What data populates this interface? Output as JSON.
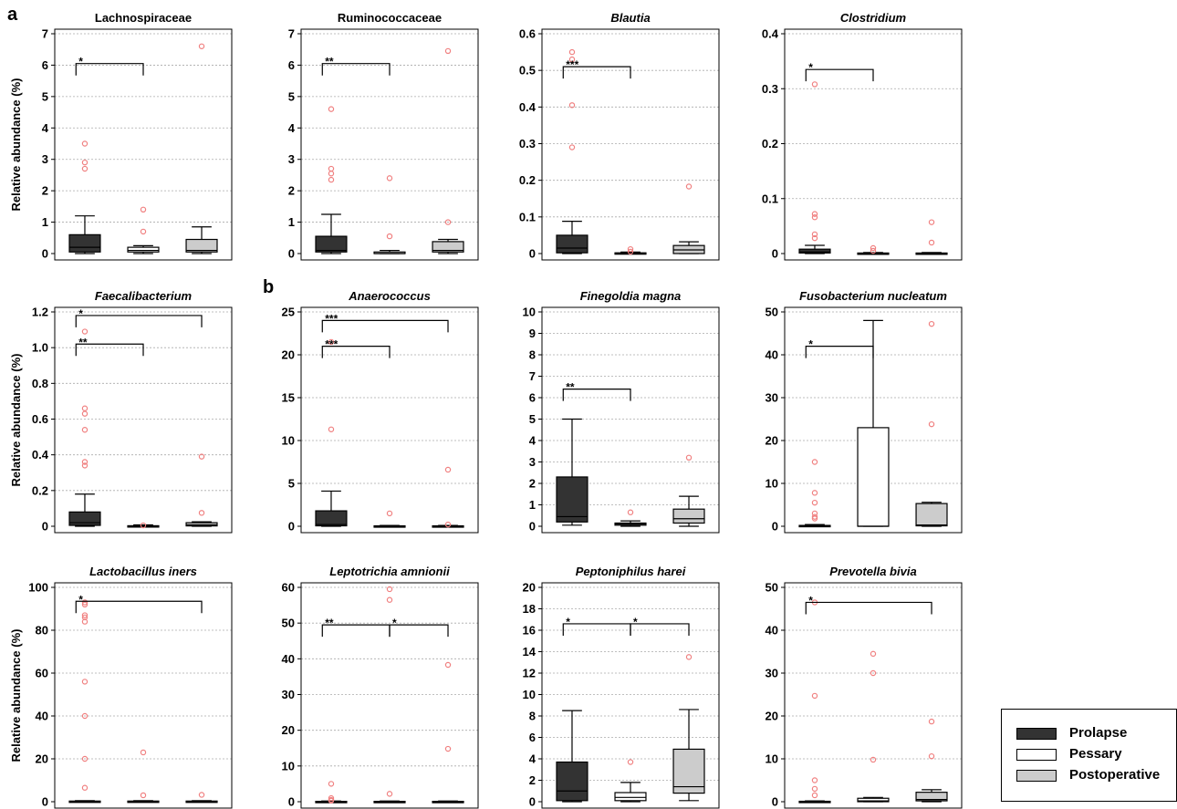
{
  "panel_labels": [
    "a",
    "b"
  ],
  "group_order": [
    "Prolapse",
    "Pessary",
    "Postoperative"
  ],
  "group_colors": {
    "Prolapse": "#333333",
    "Pessary": "#ffffff",
    "Postoperative": "#cccccc"
  },
  "outlier_color": "#f08080",
  "legend": [
    {
      "label": "Prolapse"
    },
    {
      "label": "Pessary"
    },
    {
      "label": "Postoperative"
    }
  ],
  "chart_data": [
    {
      "type": "box",
      "title": "Lachnospiraceae",
      "italic": false,
      "ylabel": "Relative abundance (%)",
      "yticks": [
        "0",
        "1",
        "2",
        "3",
        "4",
        "5",
        "6",
        "7"
      ],
      "ylim": [
        0,
        7
      ],
      "grid": true,
      "boxes": [
        {
          "group": "Prolapse",
          "lw": 0,
          "q1": 0.05,
          "med": 0.2,
          "q3": 0.6,
          "uw": 1.2
        },
        {
          "group": "Pessary",
          "lw": 0,
          "q1": 0.05,
          "med": 0.1,
          "q3": 0.2,
          "uw": 0.25
        },
        {
          "group": "Postoperative",
          "lw": 0,
          "q1": 0.05,
          "med": 0.1,
          "q3": 0.45,
          "uw": 0.85
        }
      ],
      "outliers": [
        [
          3.5,
          2.9,
          2.7
        ],
        [
          1.4,
          0.7
        ],
        [
          6.6
        ]
      ],
      "brackets": [
        {
          "from": 0,
          "to": 1,
          "y": 6.05,
          "label": "*"
        }
      ]
    },
    {
      "type": "box",
      "title": "Ruminococcaceae",
      "italic": false,
      "ylabel": "",
      "yticks": [
        "0",
        "1",
        "2",
        "3",
        "4",
        "5",
        "6",
        "7"
      ],
      "ylim": [
        0,
        7
      ],
      "grid": true,
      "boxes": [
        {
          "group": "Prolapse",
          "lw": 0,
          "q1": 0.05,
          "med": 0.1,
          "q3": 0.55,
          "uw": 1.25
        },
        {
          "group": "Pessary",
          "lw": 0,
          "q1": 0,
          "med": 0,
          "q3": 0.05,
          "uw": 0.1
        },
        {
          "group": "Postoperative",
          "lw": 0,
          "q1": 0.05,
          "med": 0.1,
          "q3": 0.38,
          "uw": 0.45
        }
      ],
      "outliers": [
        [
          4.6,
          2.7,
          2.55,
          2.35
        ],
        [
          2.4,
          0.55
        ],
        [
          6.45,
          1.0
        ]
      ],
      "brackets": [
        {
          "from": 0,
          "to": 1,
          "y": 6.05,
          "label": "**"
        }
      ]
    },
    {
      "type": "box",
      "title": "Blautia",
      "italic": true,
      "ylabel": "",
      "yticks": [
        "0",
        "0.1",
        "0.2",
        "0.3",
        "0.4",
        "0.5",
        "0.6"
      ],
      "ylim": [
        0,
        0.6
      ],
      "grid": true,
      "boxes": [
        {
          "group": "Prolapse",
          "lw": 0,
          "q1": 0.002,
          "med": 0.015,
          "q3": 0.05,
          "uw": 0.088
        },
        {
          "group": "Pessary",
          "lw": 0,
          "q1": 0,
          "med": 0,
          "q3": 0.002,
          "uw": 0.004
        },
        {
          "group": "Postoperative",
          "lw": 0,
          "q1": 0,
          "med": 0.01,
          "q3": 0.022,
          "uw": 0.032
        }
      ],
      "outliers": [
        [
          0.55,
          0.53,
          0.405,
          0.29
        ],
        [
          0.012,
          0.005
        ],
        [
          0.183
        ]
      ],
      "brackets": [
        {
          "from": 0,
          "to": 1,
          "y": 0.51,
          "label": "***"
        }
      ]
    },
    {
      "type": "box",
      "title": "Clostridium",
      "italic": true,
      "ylabel": "",
      "yticks": [
        "0",
        "0.1",
        "0.2",
        "0.3",
        "0.4"
      ],
      "ylim": [
        0,
        0.4
      ],
      "grid": true,
      "boxes": [
        {
          "group": "Prolapse",
          "lw": 0,
          "q1": 0.001,
          "med": 0.003,
          "q3": 0.008,
          "uw": 0.015
        },
        {
          "group": "Pessary",
          "lw": 0,
          "q1": 0,
          "med": 0,
          "q3": 0.001,
          "uw": 0.002
        },
        {
          "group": "Postoperative",
          "lw": 0,
          "q1": 0,
          "med": 0,
          "q3": 0.001,
          "uw": 0.002
        }
      ],
      "outliers": [
        [
          0.308,
          0.072,
          0.066,
          0.035,
          0.028
        ],
        [
          0.01,
          0.005
        ],
        [
          0.057,
          0.02
        ]
      ],
      "brackets": [
        {
          "from": 0,
          "to": 1,
          "y": 0.335,
          "label": "*"
        }
      ]
    },
    {
      "type": "box",
      "title": "Faecalibacterium",
      "italic": true,
      "ylabel": "Relative abundance (%)",
      "yticks": [
        "0",
        "0.2",
        "0.4",
        "0.6",
        "0.8",
        "1.0",
        "1.2"
      ],
      "ylim": [
        0,
        1.2
      ],
      "grid": true,
      "boxes": [
        {
          "group": "Prolapse",
          "lw": 0,
          "q1": 0.005,
          "med": 0.02,
          "q3": 0.08,
          "uw": 0.18
        },
        {
          "group": "Pessary",
          "lw": 0,
          "q1": 0,
          "med": 0,
          "q3": 0.003,
          "uw": 0.008
        },
        {
          "group": "Postoperative",
          "lw": 0,
          "q1": 0.002,
          "med": 0.008,
          "q3": 0.02,
          "uw": 0.025
        }
      ],
      "outliers": [
        [
          1.09,
          0.66,
          0.63,
          0.54,
          0.36,
          0.34
        ],
        [
          0.005
        ],
        [
          0.39,
          0.075
        ]
      ],
      "brackets": [
        {
          "from": 0,
          "to": 2,
          "y": 1.18,
          "label": "*"
        },
        {
          "from": 0,
          "to": 1,
          "y": 1.02,
          "label": "**"
        }
      ]
    },
    {
      "type": "box",
      "title": "Anaerococcus",
      "italic": true,
      "ylabel": "",
      "yticks": [
        "0",
        "5",
        "10",
        "15",
        "20",
        "25"
      ],
      "ylim": [
        0,
        25
      ],
      "grid": true,
      "boxes": [
        {
          "group": "Prolapse",
          "lw": 0,
          "q1": 0.05,
          "med": 0.2,
          "q3": 1.8,
          "uw": 4.1
        },
        {
          "group": "Pessary",
          "lw": 0,
          "q1": 0,
          "med": 0,
          "q3": 0.05,
          "uw": 0.1
        },
        {
          "group": "Postoperative",
          "lw": 0,
          "q1": 0,
          "med": 0,
          "q3": 0.05,
          "uw": 0.1
        }
      ],
      "outliers": [
        [
          21.5,
          11.3
        ],
        [
          1.5
        ],
        [
          6.6,
          0.2
        ]
      ],
      "brackets": [
        {
          "from": 0,
          "to": 2,
          "y": 24.0,
          "label": "***"
        },
        {
          "from": 0,
          "to": 1,
          "y": 21.0,
          "label": "***"
        }
      ]
    },
    {
      "type": "box",
      "title": "Finegoldia magna",
      "italic": true,
      "ylabel": "",
      "yticks": [
        "0",
        "1",
        "2",
        "3",
        "4",
        "5",
        "6",
        "7",
        "8",
        "9",
        "10"
      ],
      "ylim": [
        0,
        10
      ],
      "grid": true,
      "boxes": [
        {
          "group": "Prolapse",
          "lw": 0.05,
          "q1": 0.2,
          "med": 0.45,
          "q3": 2.3,
          "uw": 5.0
        },
        {
          "group": "Pessary",
          "lw": 0,
          "q1": 0.05,
          "med": 0.1,
          "q3": 0.15,
          "uw": 0.25
        },
        {
          "group": "Postoperative",
          "lw": 0,
          "q1": 0.15,
          "med": 0.35,
          "q3": 0.8,
          "uw": 1.4
        }
      ],
      "outliers": [
        [],
        [
          0.65
        ],
        [
          3.2
        ]
      ],
      "brackets": [
        {
          "from": 0,
          "to": 1,
          "y": 6.4,
          "label": "**"
        }
      ]
    },
    {
      "type": "box",
      "title": "Fusobacterium nucleatum",
      "italic": true,
      "ylabel": "",
      "yticks": [
        "0",
        "10",
        "20",
        "30",
        "40",
        "50"
      ],
      "ylim": [
        0,
        50
      ],
      "grid": true,
      "boxes": [
        {
          "group": "Prolapse",
          "lw": 0,
          "q1": 0,
          "med": 0,
          "q3": 0.2,
          "uw": 0.4
        },
        {
          "group": "Pessary",
          "lw": 0,
          "q1": 0,
          "med": 0,
          "q3": 23.0,
          "uw": 48.0
        },
        {
          "group": "Postoperative",
          "lw": 0,
          "q1": 0.1,
          "med": 0.3,
          "q3": 5.3,
          "uw": 5.6
        }
      ],
      "outliers": [
        [
          15.0,
          7.8,
          5.5,
          3.0,
          2.2,
          1.8
        ],
        [],
        [
          47.2,
          23.8
        ]
      ],
      "brackets": [
        {
          "from": 0,
          "to": 1,
          "y": 42.0,
          "label": "*"
        }
      ]
    },
    {
      "type": "box",
      "title": "Lactobacillus iners",
      "italic": true,
      "ylabel": "Relative abundance (%)",
      "yticks": [
        "0",
        "20",
        "40",
        "60",
        "80",
        "100"
      ],
      "ylim": [
        0,
        100
      ],
      "grid": true,
      "boxes": [
        {
          "group": "Prolapse",
          "lw": 0,
          "q1": 0,
          "med": 0,
          "q3": 0.3,
          "uw": 0.5
        },
        {
          "group": "Pessary",
          "lw": 0,
          "q1": 0,
          "med": 0,
          "q3": 0.3,
          "uw": 0.5
        },
        {
          "group": "Postoperative",
          "lw": 0,
          "q1": 0,
          "med": 0,
          "q3": 0.3,
          "uw": 0.5
        }
      ],
      "outliers": [
        [
          93,
          92,
          87,
          86,
          84,
          56,
          40,
          20,
          6.5
        ],
        [
          23,
          3
        ],
        [
          3.2
        ]
      ],
      "brackets": [
        {
          "from": 0,
          "to": 2,
          "y": 93.5,
          "label": "*"
        }
      ]
    },
    {
      "type": "box",
      "title": "Leptotrichia amnionii",
      "italic": true,
      "ylabel": "",
      "yticks": [
        "0",
        "10",
        "20",
        "30",
        "40",
        "50",
        "60"
      ],
      "ylim": [
        0,
        60
      ],
      "grid": true,
      "boxes": [
        {
          "group": "Prolapse",
          "lw": 0,
          "q1": 0,
          "med": 0,
          "q3": 0.1,
          "uw": 0.2
        },
        {
          "group": "Pessary",
          "lw": 0,
          "q1": 0,
          "med": 0,
          "q3": 0.1,
          "uw": 0.2
        },
        {
          "group": "Postoperative",
          "lw": 0,
          "q1": 0,
          "med": 0,
          "q3": 0.1,
          "uw": 0.2
        }
      ],
      "outliers": [
        [
          5.0,
          1.0,
          0.5,
          0.3
        ],
        [
          59.5,
          56.5,
          2.2
        ],
        [
          38.3,
          14.8
        ]
      ],
      "brackets": [
        {
          "from": 0,
          "to": 1,
          "y": 49.5,
          "label": "**"
        },
        {
          "from": 1,
          "to": 2,
          "y": 49.5,
          "label": "*"
        }
      ]
    },
    {
      "type": "box",
      "title": "Peptoniphilus harei",
      "italic": true,
      "ylabel": "",
      "yticks": [
        "0",
        "2",
        "4",
        "6",
        "8",
        "10",
        "12",
        "14",
        "16",
        "18",
        "20"
      ],
      "ylim": [
        0,
        20
      ],
      "grid": true,
      "boxes": [
        {
          "group": "Prolapse",
          "lw": 0,
          "q1": 0.1,
          "med": 1.0,
          "q3": 3.7,
          "uw": 8.5
        },
        {
          "group": "Pessary",
          "lw": 0,
          "q1": 0.1,
          "med": 0.4,
          "q3": 0.85,
          "uw": 1.8
        },
        {
          "group": "Postoperative",
          "lw": 0.1,
          "q1": 0.8,
          "med": 1.4,
          "q3": 4.9,
          "uw": 8.6
        }
      ],
      "outliers": [
        [],
        [
          3.7
        ],
        [
          13.5
        ]
      ],
      "brackets": [
        {
          "from": 0,
          "to": 1,
          "y": 16.6,
          "label": "*"
        },
        {
          "from": 1,
          "to": 2,
          "y": 16.6,
          "label": "*"
        }
      ]
    },
    {
      "type": "box",
      "title": "Prevotella bivia",
      "italic": true,
      "ylabel": "",
      "yticks": [
        "0",
        "10",
        "20",
        "30",
        "40",
        "50"
      ],
      "ylim": [
        0,
        50
      ],
      "grid": true,
      "boxes": [
        {
          "group": "Prolapse",
          "lw": 0,
          "q1": 0,
          "med": 0,
          "q3": 0.1,
          "uw": 0.2
        },
        {
          "group": "Pessary",
          "lw": 0,
          "q1": 0,
          "med": 0.2,
          "q3": 0.8,
          "uw": 1.0
        },
        {
          "group": "Postoperative",
          "lw": 0,
          "q1": 0.2,
          "med": 0.5,
          "q3": 2.2,
          "uw": 2.8
        }
      ],
      "outliers": [
        [
          46.5,
          24.7,
          5.0,
          3.0,
          1.5
        ],
        [
          34.5,
          30.0,
          9.8
        ],
        [
          18.7,
          10.6
        ]
      ],
      "brackets": [
        {
          "from": 0,
          "to": 2,
          "y": 46.5,
          "label": "*"
        }
      ]
    }
  ]
}
